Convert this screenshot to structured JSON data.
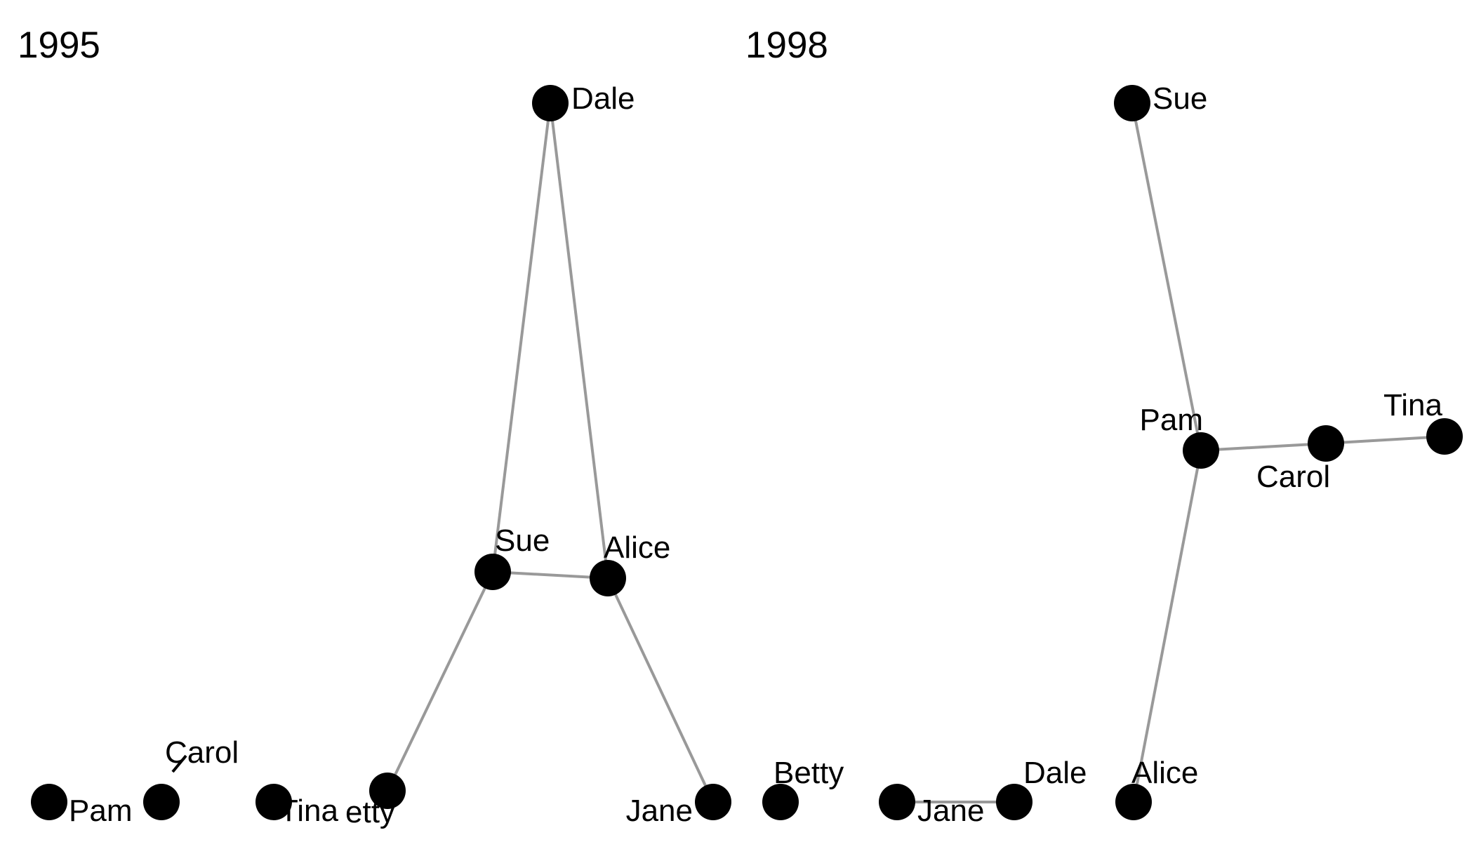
{
  "panels": [
    {
      "title": "1995",
      "nodes": [
        {
          "id": "Dale",
          "label": "Dale"
        },
        {
          "id": "Sue",
          "label": "Sue"
        },
        {
          "id": "Alice",
          "label": "Alice"
        },
        {
          "id": "Betty",
          "label": "etty"
        },
        {
          "id": "Jane",
          "label": "Jane"
        },
        {
          "id": "Pam",
          "label": "Pam"
        },
        {
          "id": "Carol",
          "label": "Carol"
        },
        {
          "id": "Tina",
          "label": "Tina"
        }
      ],
      "edges": [
        [
          "Dale",
          "Sue"
        ],
        [
          "Dale",
          "Alice"
        ],
        [
          "Sue",
          "Alice"
        ],
        [
          "Sue",
          "Betty"
        ],
        [
          "Alice",
          "Jane"
        ]
      ]
    },
    {
      "title": "1998",
      "nodes": [
        {
          "id": "Sue",
          "label": "Sue"
        },
        {
          "id": "Pam",
          "label": "Pam"
        },
        {
          "id": "Carol",
          "label": "Carol"
        },
        {
          "id": "Tina",
          "label": "Tina"
        },
        {
          "id": "Alice",
          "label": "Alice"
        },
        {
          "id": "Betty",
          "label": "Betty"
        },
        {
          "id": "Jane",
          "label": "Jane"
        },
        {
          "id": "Dale",
          "label": "Dale"
        }
      ],
      "edges": [
        [
          "Sue",
          "Pam"
        ],
        [
          "Pam",
          "Carol"
        ],
        [
          "Carol",
          "Tina"
        ],
        [
          "Pam",
          "Alice"
        ],
        [
          "Jane",
          "Dale"
        ]
      ]
    }
  ],
  "colors": {
    "node": "#000000",
    "edge": "#999999",
    "label": "#000000",
    "background": "#ffffff"
  }
}
